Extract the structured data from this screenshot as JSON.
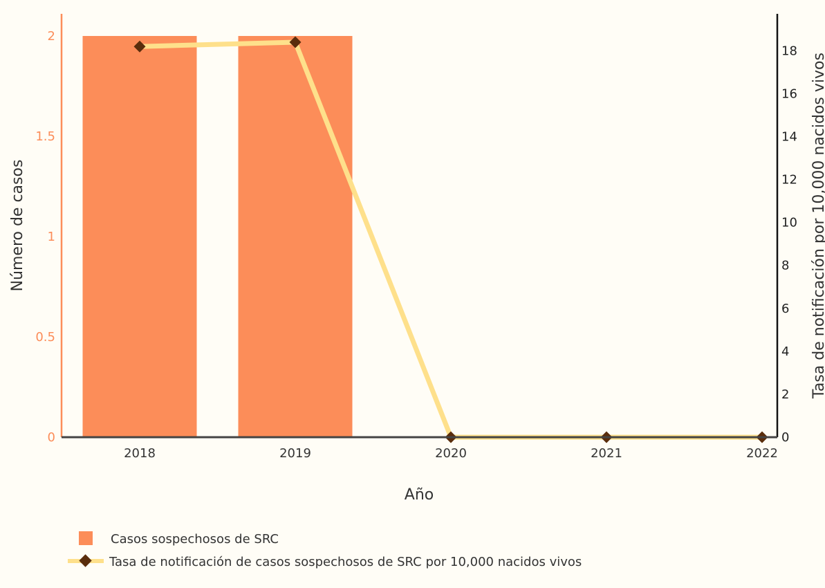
{
  "chart_data": {
    "type": "bar",
    "categories": [
      "2018",
      "2019",
      "2020",
      "2021",
      "2022"
    ],
    "series": [
      {
        "name": "Casos sospechosos de SRC",
        "type": "bar",
        "axis": "left",
        "values": [
          2,
          2,
          0,
          0,
          0
        ],
        "color": "#fc8d59"
      },
      {
        "name": "Tasa de notificación de casos sospechosos de SRC por 10,000 nacidos vivos",
        "type": "line",
        "axis": "right",
        "values": [
          18.2,
          18.4,
          0,
          0,
          0
        ],
        "color": "#fee08b",
        "marker_color": "#5a2d0c"
      }
    ],
    "xlabel": "Año",
    "ylabel_left": "Número de casos",
    "ylabel_right": "Tasa de notificación por 10,000 nacidos vivos",
    "ylim_left": [
      0,
      2
    ],
    "ylim_right": [
      0,
      18.4
    ],
    "yticks_left": [
      "0",
      "0.5",
      "1",
      "1.5",
      "2"
    ],
    "yticks_right": [
      "0",
      "2",
      "4",
      "6",
      "8",
      "10",
      "12",
      "14",
      "16",
      "18"
    ],
    "legend_position": "bottom-left",
    "colors": {
      "background": "#fffdf6",
      "left_axis": "#fc8d59",
      "right_axis": "#111111",
      "baseline": "#444444"
    }
  }
}
